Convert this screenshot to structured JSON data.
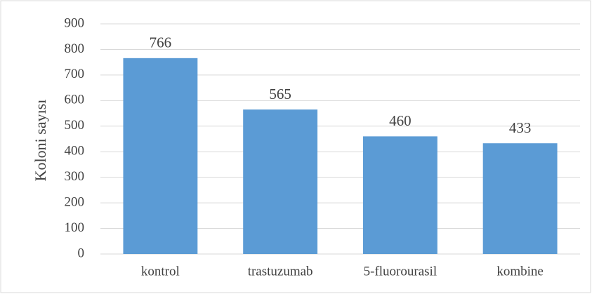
{
  "chart_data": {
    "type": "bar",
    "y_label": "Koloni sayısı",
    "categories": [
      "kontrol",
      "trastuzumab",
      "5-fluorourasil",
      "kombine"
    ],
    "values": [
      766,
      565,
      460,
      433
    ],
    "color": "#5b9bd5",
    "ylim": [
      0,
      900
    ],
    "yticks": [
      0,
      100,
      200,
      300,
      400,
      500,
      600,
      700,
      800,
      900
    ],
    "grid": true,
    "data_labels": true
  }
}
